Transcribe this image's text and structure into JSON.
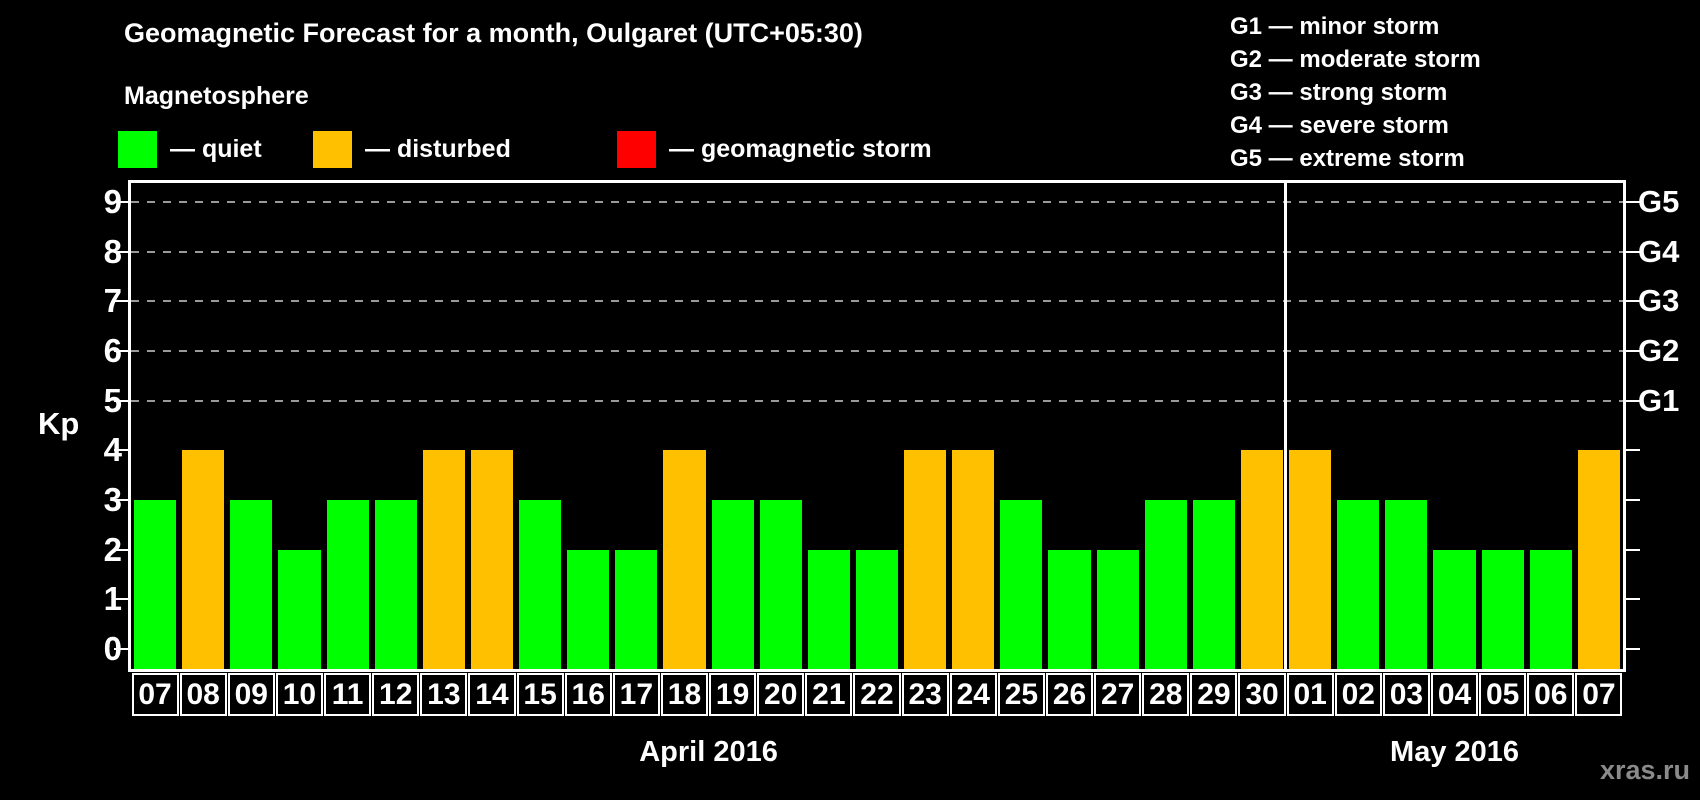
{
  "header": {
    "title": "Geomagnetic Forecast for a month, Oulgaret (UTC+05:30)",
    "subtitle": "Magnetosphere"
  },
  "legend": [
    {
      "status": "quiet",
      "label": "— quiet",
      "color": "#00FF00"
    },
    {
      "status": "disturbed",
      "label": "— disturbed",
      "color": "#FFC000"
    },
    {
      "status": "storm",
      "label": "— geomagnetic storm",
      "color": "#FF0000"
    }
  ],
  "storm_scale_legend": [
    "G1 — minor storm",
    "G2 — moderate storm",
    "G3 — strong storm",
    "G4 — severe storm",
    "G5 — extreme storm"
  ],
  "watermark": "xras.ru",
  "chart_data": {
    "type": "bar",
    "title": "Geomagnetic Forecast for a month, Oulgaret (UTC+05:30)",
    "xlabel": "",
    "ylabel": "Kp",
    "ylim": [
      0,
      9
    ],
    "yticks": [
      0,
      1,
      2,
      3,
      4,
      5,
      6,
      7,
      8,
      9
    ],
    "gridlines_kp": [
      5,
      6,
      7,
      8,
      9
    ],
    "grid": "dashed horizontal gray lines at Kp 5–9 only",
    "legend_position": "top-left",
    "right_axis_labels": [
      {
        "label": "G1",
        "kp": 5
      },
      {
        "label": "G2",
        "kp": 6
      },
      {
        "label": "G3",
        "kp": 7
      },
      {
        "label": "G4",
        "kp": 8
      },
      {
        "label": "G5",
        "kp": 9
      }
    ],
    "months": [
      {
        "label": "April 2016",
        "days": 24
      },
      {
        "label": "May 2016",
        "days": 7
      }
    ],
    "colors": {
      "quiet": "#00FF00",
      "disturbed": "#FFC000",
      "storm": "#FF0000"
    },
    "bars": [
      {
        "day": "07",
        "kp": 3,
        "status": "quiet"
      },
      {
        "day": "08",
        "kp": 4,
        "status": "disturbed"
      },
      {
        "day": "09",
        "kp": 3,
        "status": "quiet"
      },
      {
        "day": "10",
        "kp": 2,
        "status": "quiet"
      },
      {
        "day": "11",
        "kp": 3,
        "status": "quiet"
      },
      {
        "day": "12",
        "kp": 3,
        "status": "quiet"
      },
      {
        "day": "13",
        "kp": 4,
        "status": "disturbed"
      },
      {
        "day": "14",
        "kp": 4,
        "status": "disturbed"
      },
      {
        "day": "15",
        "kp": 3,
        "status": "quiet"
      },
      {
        "day": "16",
        "kp": 2,
        "status": "quiet"
      },
      {
        "day": "17",
        "kp": 2,
        "status": "quiet"
      },
      {
        "day": "18",
        "kp": 4,
        "status": "disturbed"
      },
      {
        "day": "19",
        "kp": 3,
        "status": "quiet"
      },
      {
        "day": "20",
        "kp": 3,
        "status": "quiet"
      },
      {
        "day": "21",
        "kp": 2,
        "status": "quiet"
      },
      {
        "day": "22",
        "kp": 2,
        "status": "quiet"
      },
      {
        "day": "23",
        "kp": 4,
        "status": "disturbed"
      },
      {
        "day": "24",
        "kp": 4,
        "status": "disturbed"
      },
      {
        "day": "25",
        "kp": 3,
        "status": "quiet"
      },
      {
        "day": "26",
        "kp": 2,
        "status": "quiet"
      },
      {
        "day": "27",
        "kp": 2,
        "status": "quiet"
      },
      {
        "day": "28",
        "kp": 3,
        "status": "quiet"
      },
      {
        "day": "29",
        "kp": 3,
        "status": "quiet"
      },
      {
        "day": "30",
        "kp": 4,
        "status": "disturbed"
      },
      {
        "day": "01",
        "kp": 4,
        "status": "disturbed"
      },
      {
        "day": "02",
        "kp": 3,
        "status": "quiet"
      },
      {
        "day": "03",
        "kp": 3,
        "status": "quiet"
      },
      {
        "day": "04",
        "kp": 2,
        "status": "quiet"
      },
      {
        "day": "05",
        "kp": 2,
        "status": "quiet"
      },
      {
        "day": "06",
        "kp": 2,
        "status": "quiet"
      },
      {
        "day": "07",
        "kp": 4,
        "status": "disturbed"
      }
    ]
  }
}
